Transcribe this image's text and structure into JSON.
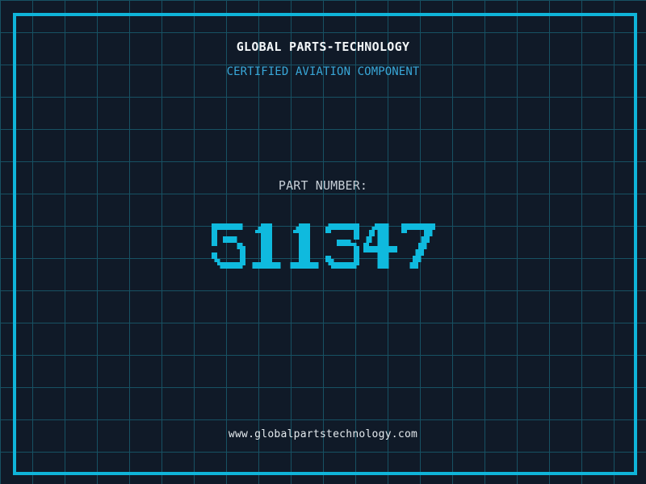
{
  "header": {
    "title": "GLOBAL PARTS-TECHNOLOGY",
    "subtitle": "CERTIFIED AVIATION COMPONENT"
  },
  "part": {
    "label": "PART NUMBER:",
    "value": "511347"
  },
  "footer": {
    "url": "www.globalpartstechnology.com"
  },
  "colors": {
    "background": "#101a28",
    "grid_line": "#175163",
    "frame_border": "#0fb4d9",
    "digit": "#0fbade",
    "title_text": "#f2f6f8",
    "subtitle_text": "#38a7d8",
    "label_text": "#c6ced6",
    "url_text": "#e4eaee"
  }
}
